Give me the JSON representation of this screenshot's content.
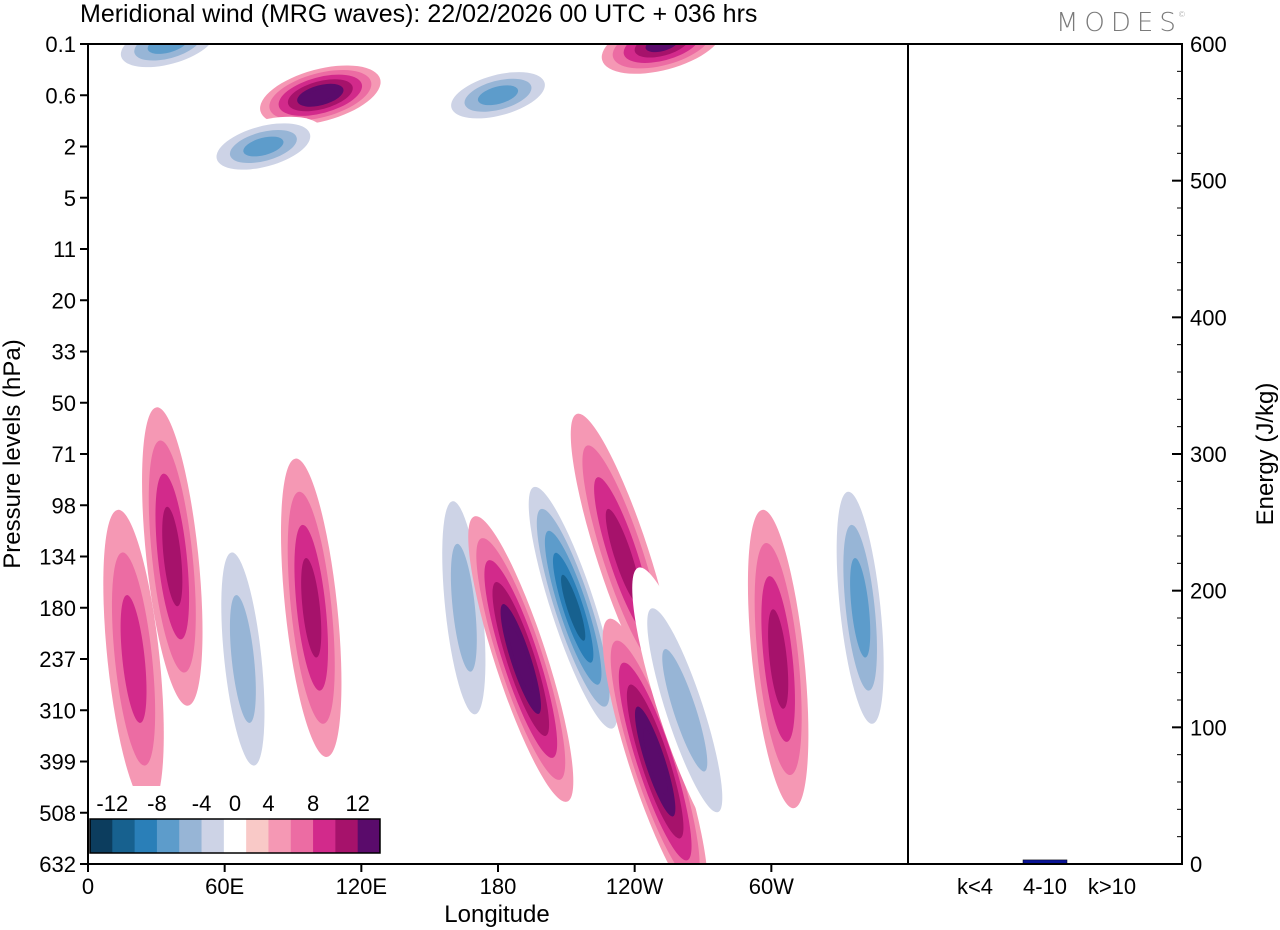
{
  "title": "Meridional wind (MRG waves):  22/02/2026  00 UTC  + 036 hrs",
  "logo": "MODES",
  "chart_data": [
    {
      "type": "heatmap",
      "title": "Meridional wind (MRG waves):  22/02/2026  00 UTC  + 036 hrs",
      "xlabel": "Longitude",
      "ylabel": "Pressure levels (hPa)",
      "x_ticks": [
        "0",
        "60E",
        "120E",
        "180",
        "120W",
        "60W"
      ],
      "x_range_deg": [
        0,
        360
      ],
      "y_ticks": [
        "0.1",
        "0.6",
        "2",
        "5",
        "11",
        "20",
        "33",
        "50",
        "71",
        "98",
        "134",
        "180",
        "237",
        "310",
        "399",
        "508",
        "632"
      ],
      "colorbar": {
        "labels": [
          "-12",
          "-8",
          "-4",
          "0",
          "4",
          "8",
          "12"
        ],
        "levels": [
          -14,
          -12,
          -10,
          -8,
          -6,
          -4,
          -2,
          2,
          4,
          6,
          8,
          10,
          12,
          14
        ],
        "colors": [
          "#0c3d5e",
          "#17618f",
          "#2a7fb8",
          "#5d9ccb",
          "#97b5d6",
          "#cdd3e6",
          "#ffffff",
          "#f9c9c7",
          "#f598b4",
          "#ec6ca3",
          "#d22a8b",
          "#a6126b",
          "#5a0b6b"
        ]
      },
      "features": [
        {
          "lon": 20,
          "level": "237",
          "value": 7
        },
        {
          "lon": 37,
          "level": "134",
          "value": 8
        },
        {
          "lon": 68,
          "level": "237",
          "value": -6
        },
        {
          "lon": 98,
          "level": "180",
          "value": 8
        },
        {
          "lon": 165,
          "level": "180",
          "value": -6
        },
        {
          "lon": 190,
          "level": "237",
          "value": 12
        },
        {
          "lon": 213,
          "level": "180",
          "value": -12
        },
        {
          "lon": 235,
          "level": "134",
          "value": 8
        },
        {
          "lon": 249,
          "level": "399",
          "value": 12
        },
        {
          "lon": 262,
          "level": "310",
          "value": -7
        },
        {
          "lon": 303,
          "level": "237",
          "value": 8
        },
        {
          "lon": 339,
          "level": "180",
          "value": -8
        },
        {
          "lon": 102,
          "level": "0.6",
          "value": 13
        },
        {
          "lon": 35,
          "level": "0.1",
          "value": -8
        },
        {
          "lon": 180,
          "level": "0.6",
          "value": -9
        },
        {
          "lon": 252,
          "level": "0.1",
          "value": 11
        },
        {
          "lon": 77,
          "level": "2",
          "value": -8
        }
      ]
    },
    {
      "type": "bar",
      "ylabel": "Energy (J/kg)",
      "categories": [
        "k<4",
        "4-10",
        "k>10"
      ],
      "values": [
        0.5,
        3,
        0.5
      ],
      "ylim": [
        0,
        600
      ],
      "y_ticks": [
        "0",
        "100",
        "200",
        "300",
        "400",
        "500",
        "600"
      ],
      "bar_color": "#0a1496"
    }
  ]
}
